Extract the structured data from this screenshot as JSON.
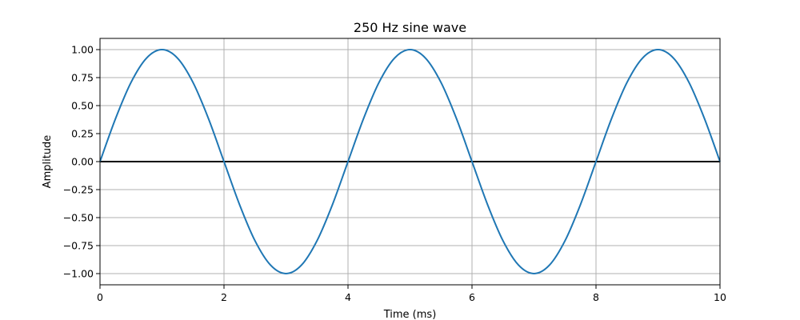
{
  "chart_data": {
    "type": "line",
    "title": "250 Hz sine wave",
    "xlabel": "Time (ms)",
    "ylabel": "Amplitude",
    "xlim": [
      0,
      10
    ],
    "ylim": [
      -1.1,
      1.1
    ],
    "xticks": [
      0,
      2,
      4,
      6,
      8,
      10
    ],
    "xtick_labels": [
      "0",
      "2",
      "4",
      "6",
      "8",
      "10"
    ],
    "yticks": [
      1.0,
      0.75,
      0.5,
      0.25,
      0.0,
      -0.25,
      -0.5,
      -0.75,
      -1.0
    ],
    "ytick_labels": [
      "1.00",
      "0.75",
      "0.50",
      "0.25",
      "0.00",
      "−0.25",
      "−0.50",
      "−0.75",
      "−1.00"
    ],
    "grid": true,
    "series": [
      {
        "color": "#1f77b4",
        "x": [
          0,
          0.25,
          0.5,
          0.75,
          1,
          1.25,
          1.5,
          1.75,
          2,
          2.25,
          2.5,
          2.75,
          3,
          3.25,
          3.5,
          3.75,
          4,
          4.25,
          4.5,
          4.75,
          5,
          5.25,
          5.5,
          5.75,
          6,
          6.25,
          6.5,
          6.75,
          7,
          7.25,
          7.5,
          7.75,
          8,
          8.25,
          8.5,
          8.75,
          9,
          9.25,
          9.5,
          9.75,
          10
        ],
        "y": [
          0,
          0.383,
          0.707,
          0.924,
          1,
          0.924,
          0.707,
          0.383,
          0,
          -0.383,
          -0.707,
          -0.924,
          -1,
          -0.924,
          -0.707,
          -0.383,
          0,
          0.383,
          0.707,
          0.924,
          1,
          0.924,
          0.707,
          0.383,
          0,
          -0.383,
          -0.707,
          -0.924,
          -1,
          -0.924,
          -0.707,
          -0.383,
          0,
          0.383,
          0.707,
          0.924,
          1,
          0.924,
          0.707,
          0.383,
          0
        ]
      }
    ],
    "reference_line": {
      "y": 0,
      "color": "#000000"
    }
  }
}
